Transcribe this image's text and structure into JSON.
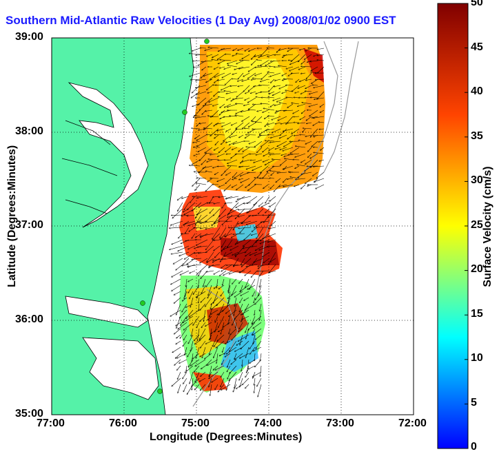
{
  "title": "Southern Mid-Atlantic Raw Velocities (1 Day Avg) 2008/01/02 0900 EST",
  "map": {
    "x_axis_label": "Longitude (Degrees:Minutes)",
    "y_axis_label": "Latitude (Degrees:Minutes)",
    "x_ticks": [
      "77:00",
      "76:00",
      "75:00",
      "74:00",
      "73:00",
      "72:00"
    ],
    "y_ticks": [
      "39:00",
      "38:00",
      "37:00",
      "36:00",
      "35:00"
    ],
    "lon_range": [
      -77,
      -72
    ],
    "lat_range": [
      35,
      39
    ],
    "grid": true,
    "land_color": "#55f2a8",
    "water_color": "#ffffff",
    "station_color": "#22cc22"
  },
  "colorbar": {
    "label": "Surface Velocity (cm/s)",
    "ticks": [
      "50",
      "45",
      "40",
      "35",
      "30",
      "25",
      "20",
      "15",
      "10",
      "5",
      "0"
    ],
    "range": [
      0,
      50
    ],
    "colormap": "jet"
  }
}
